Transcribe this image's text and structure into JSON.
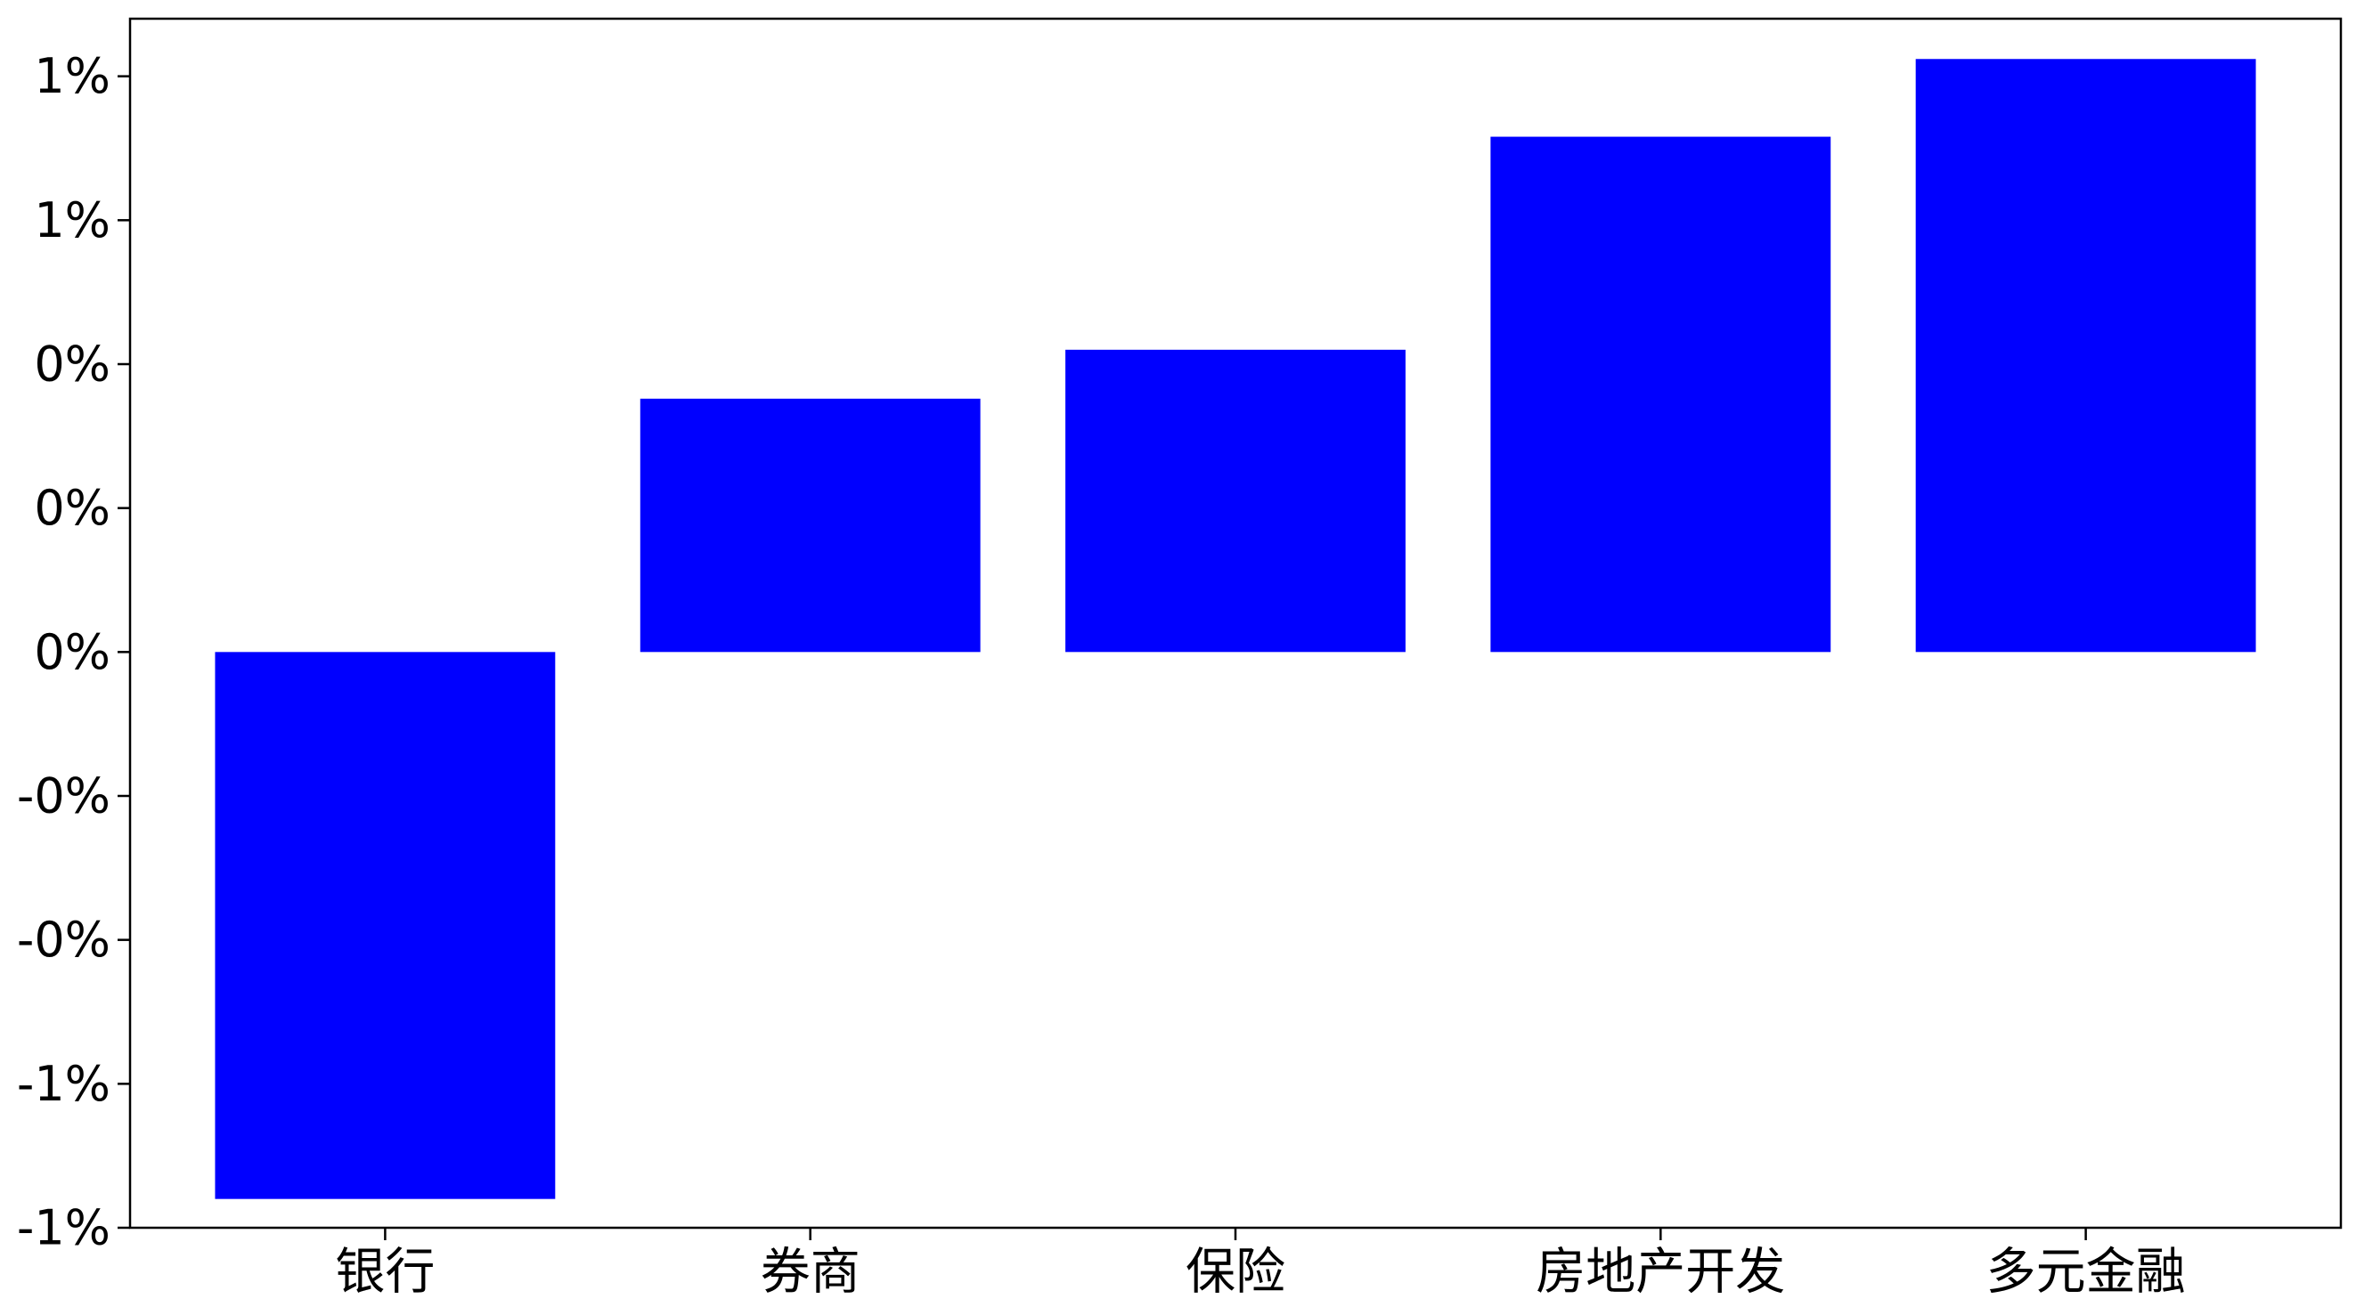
{
  "chart_data": {
    "type": "bar",
    "categories": [
      "银行",
      "券商",
      "保险",
      "房地产开发",
      "多元金融"
    ],
    "values": [
      -0.95,
      0.44,
      0.525,
      0.895,
      1.03
    ],
    "ylim": [
      -1.0,
      1.1
    ],
    "yticks": [
      -1.0,
      -0.75,
      -0.5,
      -0.25,
      0.0,
      0.25,
      0.5,
      0.75,
      1.0
    ],
    "ytick_labels": [
      "-1%",
      "-1%",
      "-0%",
      "-0%",
      "0%",
      "0%",
      "0%",
      "1%",
      "1%"
    ],
    "bar_color": "#0000ff",
    "grid": false,
    "title": "",
    "xlabel": "",
    "ylabel": ""
  }
}
